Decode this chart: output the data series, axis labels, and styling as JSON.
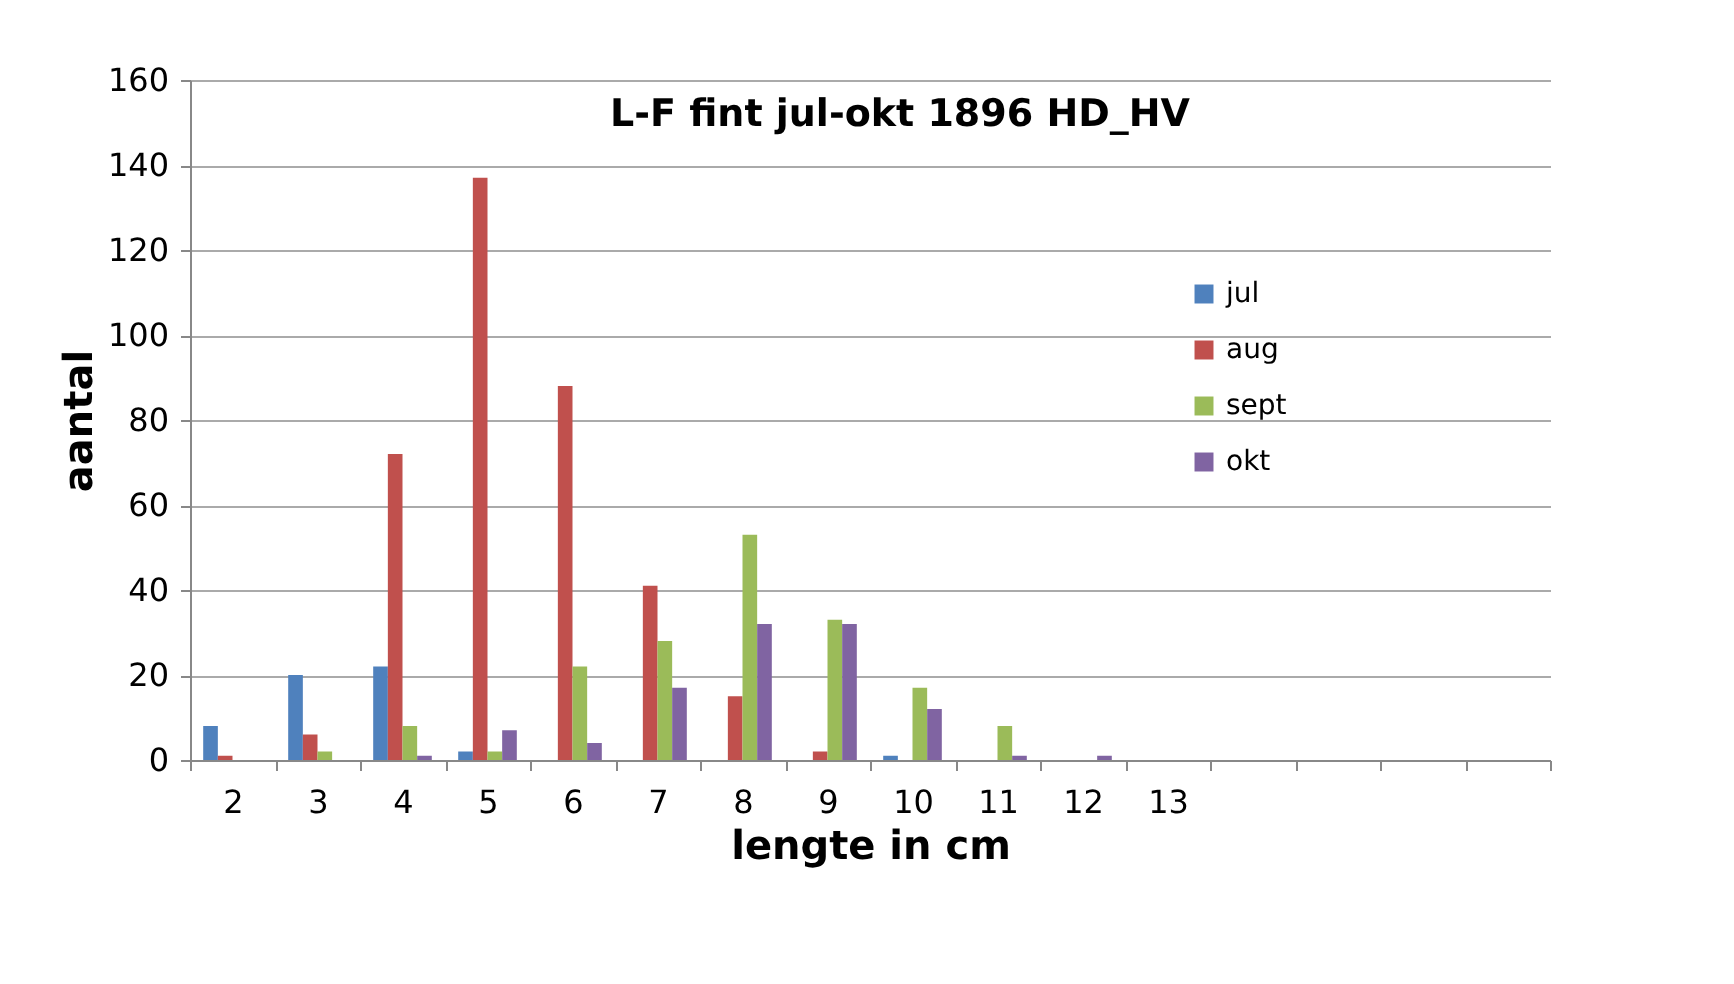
{
  "chart_data": {
    "type": "bar",
    "title": "L-F fint jul-okt 1896 HD_HV",
    "xlabel": "lengte in cm",
    "ylabel": "aantal",
    "categories": [
      "2",
      "3",
      "4",
      "5",
      "6",
      "7",
      "8",
      "9",
      "10",
      "11",
      "12",
      "13",
      null,
      null,
      null,
      null
    ],
    "series": [
      {
        "name": "jul",
        "color": "#4f81bd",
        "values": [
          8,
          20,
          22,
          2,
          0,
          0,
          0,
          0,
          1,
          0,
          0,
          0,
          null,
          null,
          null,
          null
        ]
      },
      {
        "name": "aug",
        "color": "#c0504d",
        "values": [
          1,
          6,
          72,
          137,
          88,
          41,
          15,
          2,
          0,
          0,
          0,
          0,
          null,
          null,
          null,
          null
        ]
      },
      {
        "name": "sept",
        "color": "#9bbb59",
        "values": [
          0,
          2,
          8,
          2,
          22,
          28,
          53,
          33,
          17,
          8,
          0,
          0,
          null,
          null,
          null,
          null
        ]
      },
      {
        "name": "okt",
        "color": "#8064a2",
        "values": [
          0,
          0,
          1,
          7,
          4,
          17,
          32,
          32,
          12,
          1,
          1,
          0,
          null,
          null,
          null,
          null
        ]
      }
    ],
    "ylim": [
      0,
      160
    ],
    "yticks": [
      0,
      20,
      40,
      60,
      80,
      100,
      120,
      140,
      160
    ],
    "grid": "y",
    "legend": "right"
  }
}
